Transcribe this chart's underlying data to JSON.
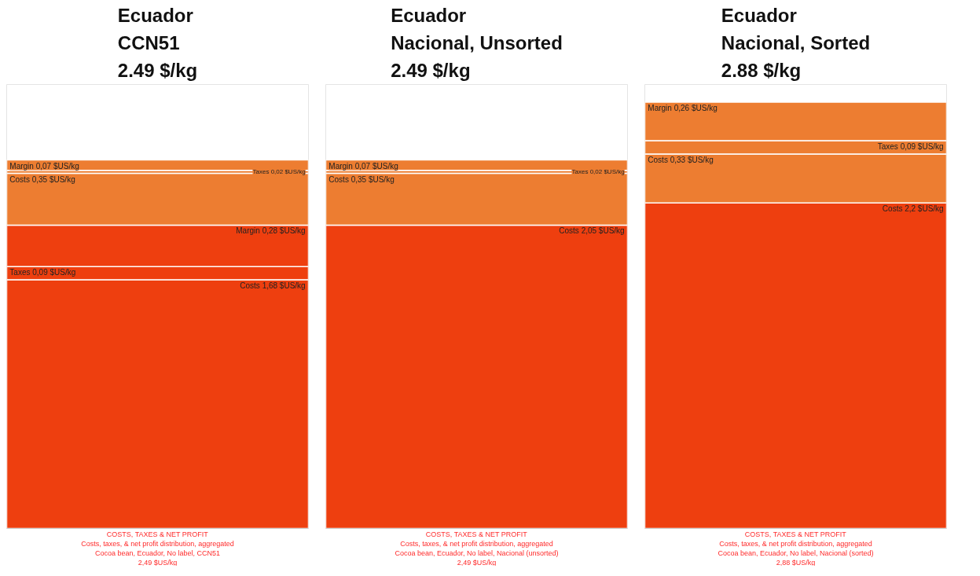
{
  "chart_data": [
    {
      "type": "bar",
      "title": "Ecuador\nCCN51\n2.49 $/kg",
      "stacked": true,
      "categories": [
        null
      ],
      "ylim": [
        0,
        3
      ],
      "tick_labels": false,
      "grid": false,
      "annotations": [
        "COSTS, TAXES & NET PROFIT",
        "Costs, taxes, & net profit distribution, aggregated",
        "Cocoa bean, Ecuador, No label, CCN51",
        "2,49 $US/kg"
      ],
      "series": [
        {
          "color": "#ee3f0f",
          "values": [
            1.68
          ],
          "value_labels": [
            "Costs 1,68 $US/kg"
          ]
        },
        {
          "color": "#ee3f0f",
          "values": [
            0.09
          ],
          "value_labels": [
            "Taxes 0,09 $US/kg"
          ]
        },
        {
          "color": "#ee3f0f",
          "values": [
            0.28
          ],
          "value_labels": [
            "Margin 0,28 $US/kg"
          ]
        },
        {
          "color": "#ed7d31",
          "values": [
            0.35
          ],
          "value_labels": [
            "Costs 0,35 $US/kg"
          ]
        },
        {
          "color": "#ed7d31",
          "values": [
            0.02
          ],
          "value_labels": [
            "Taxes 0,02 $US/kg"
          ]
        },
        {
          "color": "#ed7d31",
          "values": [
            0.07
          ],
          "value_labels": [
            "Margin 0,07 $US/kg"
          ]
        }
      ]
    },
    {
      "type": "bar",
      "title": "Ecuador\nNacional, Unsorted\n2.49 $/kg",
      "stacked": true,
      "categories": [
        null
      ],
      "ylim": [
        0,
        3
      ],
      "tick_labels": false,
      "grid": false,
      "annotations": [
        "COSTS, TAXES & NET PROFIT",
        "Costs, taxes, & net profit distribution, aggregated",
        "Cocoa bean, Ecuador, No label, Nacional (unsorted)",
        "2,49 $US/kg"
      ],
      "series": [
        {
          "color": "#ee3f0f",
          "values": [
            2.05
          ],
          "value_labels": [
            "Costs 2,05 $US/kg"
          ]
        },
        {
          "color": "#ed7d31",
          "values": [
            0.35
          ],
          "value_labels": [
            "Costs 0,35 $US/kg"
          ]
        },
        {
          "color": "#ed7d31",
          "values": [
            0.02
          ],
          "value_labels": [
            "Taxes 0,02 $US/kg"
          ]
        },
        {
          "color": "#ed7d31",
          "values": [
            0.07
          ],
          "value_labels": [
            "Margin 0,07 $US/kg"
          ]
        }
      ]
    },
    {
      "type": "bar",
      "title": "Ecuador\nNacional, Sorted\n2.88 $/kg",
      "stacked": true,
      "categories": [
        null
      ],
      "ylim": [
        0,
        3
      ],
      "tick_labels": false,
      "grid": false,
      "annotations": [
        "COSTS, TAXES & NET PROFIT",
        "Costs, taxes, & net profit distribution, aggregated",
        "Cocoa bean, Ecuador, No label, Nacional (sorted)",
        "2,88 $US/kg"
      ],
      "series": [
        {
          "color": "#ee3f0f",
          "values": [
            2.2
          ],
          "value_labels": [
            "Costs 2,2 $US/kg"
          ]
        },
        {
          "color": "#ed7d31",
          "values": [
            0.33
          ],
          "value_labels": [
            "Costs 0,33 $US/kg"
          ]
        },
        {
          "color": "#ed7d31",
          "values": [
            0.09
          ],
          "value_labels": [
            "Taxes 0,09 $US/kg"
          ]
        },
        {
          "color": "#ed7d31",
          "values": [
            0.26
          ],
          "value_labels": [
            "Margin 0,26 $US/kg"
          ]
        }
      ]
    }
  ]
}
